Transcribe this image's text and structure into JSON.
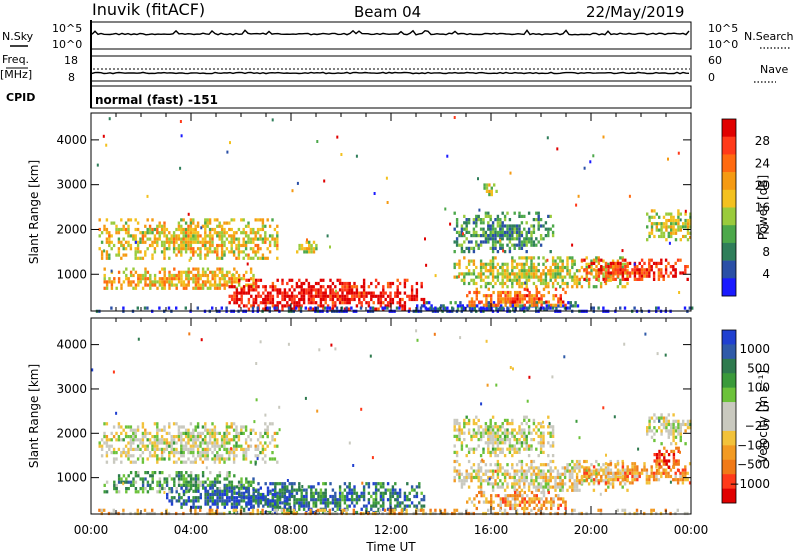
{
  "header": {
    "station": "Inuvik (fitACF)",
    "beam": "Beam 04",
    "date": "22/May/2019"
  },
  "top_panels": {
    "nsky_label": "N.Sky",
    "nsearch_label": "N.Search",
    "log_ticks": [
      "10^5",
      "10^0"
    ],
    "freq_label": "Freq.",
    "freq_unit": "[MHz]",
    "freq_ticks": [
      "18",
      "8"
    ],
    "nave_label": "Nave",
    "nave_ticks": [
      "60",
      "0"
    ],
    "cpid_label": "CPID",
    "cpid_text": "normal (fast) -151"
  },
  "chart_data": [
    {
      "type": "heatmap",
      "name": "power",
      "ylabel": "Slant Range [km]",
      "ylim": [
        180,
        4600
      ],
      "yticks": [
        1000,
        2000,
        3000,
        4000
      ],
      "xlim_hours": [
        0,
        24
      ],
      "colorbar": {
        "label": "Power [dB]",
        "ticks": [
          "28",
          "24",
          "20",
          "16",
          "12",
          "8",
          "4"
        ],
        "colors": [
          "#e00000",
          "#ff3a1a",
          "#ff6a10",
          "#f59a12",
          "#f3c11f",
          "#9acb3c",
          "#4ca84a",
          "#2f7e5a",
          "#2a4fa6",
          "#1a1aff"
        ]
      },
      "regions": [
        {
          "t0": 0.3,
          "t1": 7.5,
          "r0": 1350,
          "r1": 2250,
          "level": 0.55
        },
        {
          "t0": 0.5,
          "t1": 6.5,
          "r0": 650,
          "r1": 1150,
          "level": 0.6
        },
        {
          "t0": 5.5,
          "t1": 13.3,
          "r0": 200,
          "r1": 900,
          "level": 0.95
        },
        {
          "t0": 13.0,
          "t1": 19.5,
          "r0": 200,
          "r1": 400,
          "level": 0.15
        },
        {
          "t0": 15.0,
          "t1": 19.0,
          "r0": 300,
          "r1": 700,
          "level": 0.75
        },
        {
          "t0": 14.5,
          "t1": 21.5,
          "r0": 700,
          "r1": 1400,
          "level": 0.5
        },
        {
          "t0": 14.5,
          "t1": 18.5,
          "r0": 1500,
          "r1": 2400,
          "level": 0.3
        },
        {
          "t0": 15.6,
          "t1": 16.2,
          "r0": 2700,
          "r1": 3100,
          "level": 0.5
        },
        {
          "t0": 19.5,
          "t1": 24.0,
          "r0": 900,
          "r1": 1350,
          "level": 0.85
        },
        {
          "t0": 22.2,
          "t1": 24.0,
          "r0": 1800,
          "r1": 2450,
          "level": 0.5
        },
        {
          "t0": 8.2,
          "t1": 9.0,
          "r0": 1500,
          "r1": 1750,
          "level": 0.5
        },
        {
          "t0": 0.0,
          "t1": 24.0,
          "r0": 200,
          "r1": 280,
          "level": 0.1
        }
      ]
    },
    {
      "type": "heatmap",
      "name": "velocity",
      "ylabel": "Slant Range [km]",
      "ylim": [
        180,
        4600
      ],
      "yticks": [
        1000,
        2000,
        3000,
        4000
      ],
      "xlim_hours": [
        0,
        24
      ],
      "xlabel": "Time UT",
      "xticks": [
        "00:00",
        "04:00",
        "08:00",
        "12:00",
        "16:00",
        "20:00",
        "00:00"
      ],
      "colorbar": {
        "label": "Velocity [m s⁻¹]",
        "ticks": [
          "1000",
          "500",
          "100",
          "25",
          "−25",
          "−100",
          "−500",
          "−1000"
        ],
        "colors": [
          "#2040d0",
          "#2f5aa8",
          "#2e7a4e",
          "#3a9a3a",
          "#6cc23a",
          "#c9c9bf",
          "#c9c9bf",
          "#f2c23a",
          "#f29a22",
          "#f07a18",
          "#ff3a1a",
          "#e00000"
        ]
      },
      "regions": [
        {
          "t0": 0.3,
          "t1": 7.5,
          "r0": 1350,
          "r1": 2250,
          "level": 0.5
        },
        {
          "t0": 0.5,
          "t1": 6.5,
          "r0": 650,
          "r1": 1150,
          "level": 0.3
        },
        {
          "t0": 5.5,
          "t1": 13.3,
          "r0": 200,
          "r1": 900,
          "level": 0.2
        },
        {
          "t0": 3.0,
          "t1": 8.0,
          "r0": 300,
          "r1": 800,
          "level": 0.12
        },
        {
          "t0": 14.5,
          "t1": 21.5,
          "r0": 700,
          "r1": 1400,
          "level": 0.55
        },
        {
          "t0": 15.0,
          "t1": 19.0,
          "r0": 300,
          "r1": 700,
          "level": 0.7
        },
        {
          "t0": 14.5,
          "t1": 18.5,
          "r0": 1500,
          "r1": 2400,
          "level": 0.5
        },
        {
          "t0": 19.5,
          "t1": 24.0,
          "r0": 900,
          "r1": 1350,
          "level": 0.72
        },
        {
          "t0": 22.5,
          "t1": 23.5,
          "r0": 1150,
          "r1": 1700,
          "level": 0.85
        },
        {
          "t0": 22.2,
          "t1": 24.0,
          "r0": 1800,
          "r1": 2450,
          "level": 0.5
        },
        {
          "t0": 0.0,
          "t1": 24.0,
          "r0": 200,
          "r1": 300,
          "level": 0.65
        }
      ]
    }
  ]
}
